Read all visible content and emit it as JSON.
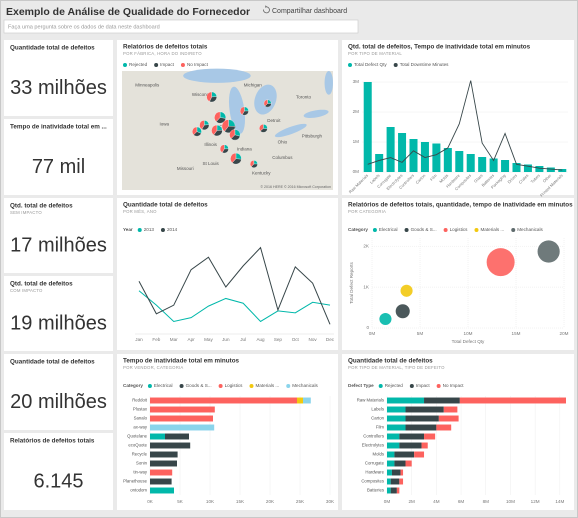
{
  "header": {
    "title": "Exemplo de Análise de Qualidade do Fornecedor",
    "share": "Compartilhar dashboard",
    "search": "Faça uma pergunta sobre os dados de data neste dashboard"
  },
  "cards": [
    {
      "title": "Quantidade total de defeitos",
      "value": "33 milhões"
    },
    {
      "title": "Tempo de inatividade total em ...",
      "value": "77 mil"
    },
    {
      "title": "Qtd. total de defeitos",
      "subtitle": "SEM IMPACTO",
      "value": "17 milhões"
    },
    {
      "title": "Qtd. total de defeitos",
      "subtitle": "COM IMPACTO",
      "value": "19 milhões"
    },
    {
      "title": "Quantidade total de defeitos",
      "value": "20 milhões"
    },
    {
      "title": "Relatórios de defeitos totais",
      "value": "6.145"
    }
  ],
  "chart_data": [
    {
      "type": "map",
      "title": "Relatórios de defeitos totais",
      "subtitle": "POR FÁBRICA, HORA DO INDIRETO",
      "series": [
        {
          "name": "Rejected",
          "color": "#01b8aa"
        },
        {
          "name": "Impact",
          "color": "#374649"
        },
        {
          "name": "No Impact",
          "color": "#fd625e"
        }
      ],
      "places": [
        "Minneapolis",
        "Wisconsin",
        "Michigan",
        "Toronto",
        "Iowa",
        "Chicago",
        "Detroit",
        "Illinois",
        "Indiana",
        "Ohio",
        "Pittsburgh",
        "Columbus",
        "Missouri",
        "St Louis",
        "Kentucky"
      ],
      "markers": [
        {
          "lon": -89.5,
          "lat": 44.6,
          "values": [
            10,
            14,
            18
          ]
        },
        {
          "lon": -88.7,
          "lat": 42.7,
          "values": [
            16,
            20,
            22
          ]
        },
        {
          "lon": -89.0,
          "lat": 41.5,
          "values": [
            12,
            18,
            20
          ]
        },
        {
          "lon": -87.9,
          "lat": 41.9,
          "values": [
            22,
            30,
            34
          ]
        },
        {
          "lon": -87.3,
          "lat": 41.1,
          "values": [
            14,
            16,
            18
          ]
        },
        {
          "lon": -90.2,
          "lat": 42.0,
          "values": [
            8,
            12,
            14
          ]
        },
        {
          "lon": -90.9,
          "lat": 41.4,
          "values": [
            10,
            10,
            12
          ]
        },
        {
          "lon": -88.3,
          "lat": 39.8,
          "values": [
            6,
            8,
            10
          ]
        },
        {
          "lon": -87.2,
          "lat": 38.9,
          "values": [
            14,
            18,
            20
          ]
        },
        {
          "lon": -84.6,
          "lat": 41.7,
          "values": [
            6,
            8,
            8
          ]
        },
        {
          "lon": -84.2,
          "lat": 44.0,
          "values": [
            4,
            6,
            6
          ]
        },
        {
          "lon": -86.4,
          "lat": 43.3,
          "values": [
            6,
            8,
            10
          ]
        },
        {
          "lon": -85.5,
          "lat": 38.4,
          "values": [
            4,
            6,
            6
          ]
        }
      ],
      "credits": "© 2016 HERE  © 2016 Microsoft Corporation"
    },
    {
      "type": "line",
      "title": "Quantidade total de defeitos",
      "subtitle": "POR MÊS, ANO",
      "legend_title": "Year",
      "categories": [
        "Jan",
        "Feb",
        "Mar",
        "Apr",
        "May",
        "Jun",
        "Jul",
        "Aug",
        "Sep",
        "Oct",
        "Nov",
        "Dec"
      ],
      "series": [
        {
          "name": "2013",
          "color": "#01b8aa",
          "values": [
            1.55,
            1.4,
            1.23,
            1.27,
            1.39,
            1.47,
            1.42,
            1.23,
            1.34,
            1.32,
            1.43,
            1.4
          ]
        },
        {
          "name": "2014",
          "color": "#374649",
          "values": [
            1.65,
            1.31,
            1.4,
            1.77,
            1.9,
            1.59,
            1.81,
            2.0,
            1.35,
            1.8,
            1.63,
            1.2
          ]
        }
      ]
    },
    {
      "type": "combo",
      "title": "Qtd. total de defeitos, Tempo de inatividade total em minutos",
      "subtitle": "POR TIPO DE MATERIAL",
      "categories": [
        "Raw Materials",
        "Labels",
        "Corrugate",
        "Electrolytes",
        "Controllers",
        "Carton",
        "Film",
        "Molds",
        "Hardware",
        "Composites",
        "Glass",
        "Batteries",
        "Packaging",
        "Drives",
        "Crates",
        "Tubes",
        "Other",
        "Printed Materials"
      ],
      "series": [
        {
          "name": "Total Defect Qty",
          "color": "#01b8aa",
          "values": [
            3000000,
            600000,
            1500000,
            1300000,
            1100000,
            1000000,
            950000,
            800000,
            700000,
            600000,
            500000,
            450000,
            400000,
            300000,
            250000,
            200000,
            150000,
            100000
          ]
        },
        {
          "name": "Total Downtime Minutes",
          "color": "#374649",
          "values": [
            800,
            1200,
            1500,
            1000,
            2200,
            1500,
            1800,
            2500,
            5000,
            9500,
            3000,
            1200,
            4000,
            800,
            600,
            400,
            300,
            200
          ]
        }
      ],
      "ylim": [
        0,
        3200000
      ],
      "yticks": [
        {
          "value": 0,
          "label": "0M"
        },
        {
          "value": 1000000,
          "label": "1M"
        },
        {
          "value": 2000000,
          "label": "2M"
        },
        {
          "value": 3000000,
          "label": "3M"
        }
      ]
    },
    {
      "type": "bubble",
      "title": "Relatórios de defeitos totais, quantidade, tempo de inatividade em minutos",
      "subtitle": "POR CATEGORIA",
      "legend_title": "Category",
      "xlabel": "Total Defect Qty",
      "ylabel": "Total Defect Reports",
      "series": [
        {
          "name": "Electrical",
          "color": "#01b8aa",
          "x": 1400000,
          "y": 220,
          "size": 4000
        },
        {
          "name": "Goods & S...",
          "color": "#374649",
          "x": 3200000,
          "y": 410,
          "size": 7000
        },
        {
          "name": "Logistics",
          "color": "#fd625e",
          "x": 13400000,
          "y": 1610,
          "size": 52000
        },
        {
          "name": "Materials ...",
          "color": "#f2c80f",
          "x": 3600000,
          "y": 910,
          "size": 4000
        },
        {
          "name": "Mechanicals",
          "color": "#5f6b6d",
          "x": 18400000,
          "y": 1870,
          "size": 28000
        }
      ],
      "xlim": [
        0,
        20000000
      ],
      "ylim": [
        0,
        2200
      ],
      "xticks": [
        {
          "value": 0,
          "label": "0M"
        },
        {
          "value": 5000000,
          "label": "5M"
        },
        {
          "value": 10000000,
          "label": "10M"
        },
        {
          "value": 15000000,
          "label": "15M"
        },
        {
          "value": 20000000,
          "label": "20M"
        }
      ],
      "yticks": [
        0,
        {
          "value": 1000,
          "label": "1K"
        },
        {
          "value": 2000,
          "label": "2K"
        }
      ]
    },
    {
      "type": "hbar",
      "title": "Tempo de inatividade total em minutos",
      "subtitle": "POR VENDOR, CATEGORIA",
      "legend_title": "Category",
      "categories": [
        "Reddoit",
        "Plustax",
        "Sanalo",
        "ax-way",
        "Quotelane",
        "ecoQuote",
        "Recycle",
        "Sonin",
        "tin-way",
        "Planethouse",
        "ontodom"
      ],
      "series": [
        {
          "name": "Electrical",
          "color": "#01b8aa",
          "values": [
            0,
            0,
            0,
            0,
            2500,
            0,
            0,
            0,
            0,
            0,
            4000
          ]
        },
        {
          "name": "Goods & S...",
          "color": "#374649",
          "values": [
            0,
            0,
            0,
            0,
            4000,
            6700,
            4600,
            4500,
            0,
            3600,
            0
          ]
        },
        {
          "name": "Logistics",
          "color": "#fd625e",
          "values": [
            24500,
            10800,
            10500,
            0,
            0,
            0,
            0,
            0,
            3700,
            0,
            0
          ]
        },
        {
          "name": "Materials ...",
          "color": "#f2c80f",
          "values": [
            1000,
            0,
            0,
            0,
            0,
            0,
            0,
            0,
            0,
            0,
            0
          ]
        },
        {
          "name": "Mechanicals",
          "color": "#8ad4eb",
          "values": [
            1300,
            0,
            0,
            10700,
            0,
            0,
            0,
            0,
            0,
            0,
            0
          ]
        }
      ],
      "xlim": [
        0,
        30000
      ],
      "xticks": [
        {
          "value": 0,
          "label": "0K"
        },
        {
          "value": 5000,
          "label": "5K"
        },
        {
          "value": 10000,
          "label": "10K"
        },
        {
          "value": 15000,
          "label": "15K"
        },
        {
          "value": 20000,
          "label": "20K"
        },
        {
          "value": 25000,
          "label": "25K"
        },
        {
          "value": 30000,
          "label": "30K"
        }
      ]
    },
    {
      "type": "hbar",
      "title": "Quantidade total de defeitos",
      "subtitle": "POR TIPO DE MATERIAL, TIPO DE DEFEITO",
      "legend_title": "Defect Type",
      "categories": [
        "Raw Materials",
        "Labels",
        "Carton",
        "Film",
        "Controllers",
        "Electrolytes",
        "Molds",
        "Corrugate",
        "Hardware",
        "Composites",
        "Batteries"
      ],
      "series": [
        {
          "name": "Rejected",
          "color": "#01b8aa",
          "values": [
            3000000,
            1500000,
            1500000,
            1500000,
            1000000,
            1000000,
            600000,
            600000,
            400000,
            300000,
            300000
          ]
        },
        {
          "name": "Impact",
          "color": "#374649",
          "values": [
            2900000,
            3100000,
            2700000,
            2500000,
            2000000,
            1800000,
            1600000,
            900000,
            700000,
            700000,
            500000
          ]
        },
        {
          "name": "No Impact",
          "color": "#fd625e",
          "values": [
            8600000,
            1100000,
            1600000,
            1200000,
            900000,
            500000,
            800000,
            500000,
            200000,
            300000,
            200000
          ]
        }
      ],
      "xlim": [
        0,
        14500000
      ],
      "xticks": [
        {
          "value": 0,
          "label": "0M"
        },
        {
          "value": 2000000,
          "label": "2M"
        },
        {
          "value": 4000000,
          "label": "4M"
        },
        {
          "value": 6000000,
          "label": "6M"
        },
        {
          "value": 8000000,
          "label": "8M"
        },
        {
          "value": 10000000,
          "label": "10M"
        },
        {
          "value": 12000000,
          "label": "12M"
        },
        {
          "value": 14000000,
          "label": "14M"
        }
      ]
    }
  ]
}
